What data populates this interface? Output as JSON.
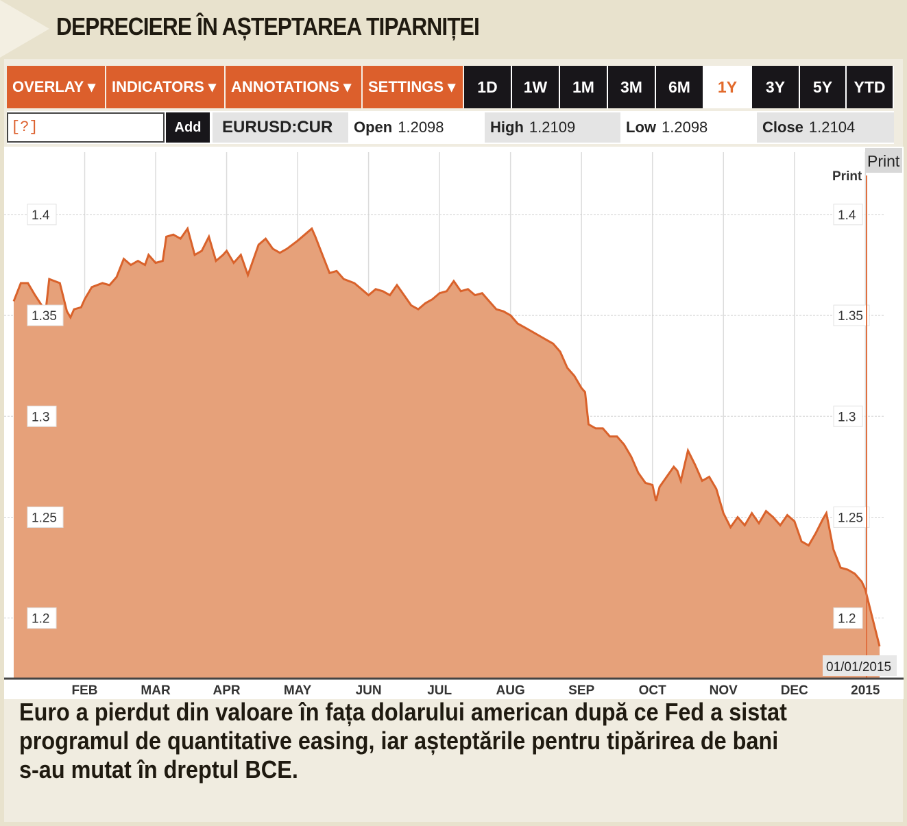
{
  "headline": "DEPRECIERE ÎN AȘTEPTAREA TIPARNIȚEI",
  "toolbar": {
    "menus": [
      "OVERLAY ▾",
      "INDICATORS ▾",
      "ANNOTATIONS ▾",
      "SETTINGS ▾"
    ],
    "ranges": [
      "1D",
      "1W",
      "1M",
      "3M",
      "6M",
      "1Y",
      "3Y",
      "5Y",
      "YTD"
    ],
    "selected_range": "1Y"
  },
  "quote": {
    "input_value": "[?]",
    "add_label": "Add",
    "symbol": "EURUSD:CUR",
    "open_label": "Open",
    "open_value": "1.2098",
    "high_label": "High",
    "high_value": "1.2109",
    "low_label": "Low",
    "low_value": "1.2098",
    "close_label": "Close",
    "close_value": "1.2104"
  },
  "print_label": "Print",
  "print_label_2": "Print",
  "date_badge": "01/01/2015",
  "caption": "Euro a pierdut din valoare în fața dolarului american după ce Fed a sistat programul de quantitative easing, iar așteptările pentru tipărirea de bani s-au mutat în dreptul BCE.",
  "colors": {
    "accent": "#dc5f2c",
    "fill": "#e6a17a",
    "line": "#d9622b"
  },
  "chart_data": {
    "type": "area",
    "title": "",
    "ylim": [
      1.17,
      1.42
    ],
    "y_ticks": [
      "1.4",
      "1.35",
      "1.3",
      "1.25",
      "1.2"
    ],
    "y_tick_values": [
      1.4,
      1.35,
      1.3,
      1.25,
      1.2
    ],
    "x_ticks": [
      "FEB",
      "MAR",
      "APR",
      "MAY",
      "JUN",
      "JUL",
      "AUG",
      "SEP",
      "OCT",
      "NOV",
      "DEC",
      "2015"
    ],
    "x_tick_months": [
      1,
      2,
      3,
      4,
      5,
      6,
      7,
      8,
      9,
      10,
      11,
      12
    ],
    "x_unit": "months since 2014-01-01",
    "series": [
      {
        "name": "EURUSD",
        "points": [
          [
            0.0,
            1.357
          ],
          [
            0.1,
            1.366
          ],
          [
            0.2,
            1.366
          ],
          [
            0.3,
            1.36
          ],
          [
            0.45,
            1.352
          ],
          [
            0.5,
            1.368
          ],
          [
            0.65,
            1.366
          ],
          [
            0.75,
            1.352
          ],
          [
            0.8,
            1.349
          ],
          [
            0.85,
            1.353
          ],
          [
            0.95,
            1.354
          ],
          [
            1.0,
            1.358
          ],
          [
            1.1,
            1.364
          ],
          [
            1.25,
            1.366
          ],
          [
            1.35,
            1.365
          ],
          [
            1.45,
            1.369
          ],
          [
            1.55,
            1.378
          ],
          [
            1.65,
            1.375
          ],
          [
            1.75,
            1.377
          ],
          [
            1.85,
            1.375
          ],
          [
            1.9,
            1.38
          ],
          [
            2.0,
            1.376
          ],
          [
            2.1,
            1.377
          ],
          [
            2.15,
            1.389
          ],
          [
            2.25,
            1.39
          ],
          [
            2.35,
            1.388
          ],
          [
            2.45,
            1.393
          ],
          [
            2.55,
            1.38
          ],
          [
            2.65,
            1.382
          ],
          [
            2.75,
            1.389
          ],
          [
            2.85,
            1.377
          ],
          [
            2.95,
            1.38
          ],
          [
            3.0,
            1.382
          ],
          [
            3.1,
            1.376
          ],
          [
            3.2,
            1.38
          ],
          [
            3.3,
            1.37
          ],
          [
            3.45,
            1.385
          ],
          [
            3.55,
            1.388
          ],
          [
            3.65,
            1.383
          ],
          [
            3.75,
            1.381
          ],
          [
            3.85,
            1.383
          ],
          [
            4.0,
            1.387
          ],
          [
            4.1,
            1.39
          ],
          [
            4.2,
            1.393
          ],
          [
            4.25,
            1.389
          ],
          [
            4.35,
            1.38
          ],
          [
            4.45,
            1.371
          ],
          [
            4.55,
            1.372
          ],
          [
            4.65,
            1.368
          ],
          [
            4.8,
            1.366
          ],
          [
            4.9,
            1.363
          ],
          [
            5.0,
            1.36
          ],
          [
            5.1,
            1.363
          ],
          [
            5.2,
            1.362
          ],
          [
            5.3,
            1.36
          ],
          [
            5.4,
            1.365
          ],
          [
            5.5,
            1.36
          ],
          [
            5.6,
            1.355
          ],
          [
            5.7,
            1.353
          ],
          [
            5.8,
            1.356
          ],
          [
            5.9,
            1.358
          ],
          [
            6.0,
            1.361
          ],
          [
            6.1,
            1.362
          ],
          [
            6.2,
            1.367
          ],
          [
            6.3,
            1.362
          ],
          [
            6.4,
            1.363
          ],
          [
            6.5,
            1.36
          ],
          [
            6.6,
            1.361
          ],
          [
            6.7,
            1.357
          ],
          [
            6.8,
            1.353
          ],
          [
            6.9,
            1.352
          ],
          [
            7.0,
            1.35
          ],
          [
            7.1,
            1.346
          ],
          [
            7.2,
            1.344
          ],
          [
            7.3,
            1.342
          ],
          [
            7.4,
            1.34
          ],
          [
            7.5,
            1.338
          ],
          [
            7.6,
            1.336
          ],
          [
            7.7,
            1.332
          ],
          [
            7.8,
            1.324
          ],
          [
            7.9,
            1.32
          ],
          [
            8.0,
            1.314
          ],
          [
            8.05,
            1.312
          ],
          [
            8.1,
            1.296
          ],
          [
            8.2,
            1.294
          ],
          [
            8.3,
            1.294
          ],
          [
            8.4,
            1.29
          ],
          [
            8.5,
            1.29
          ],
          [
            8.6,
            1.286
          ],
          [
            8.7,
            1.28
          ],
          [
            8.8,
            1.272
          ],
          [
            8.9,
            1.267
          ],
          [
            9.0,
            1.266
          ],
          [
            9.05,
            1.258
          ],
          [
            9.1,
            1.265
          ],
          [
            9.2,
            1.27
          ],
          [
            9.3,
            1.275
          ],
          [
            9.35,
            1.273
          ],
          [
            9.4,
            1.268
          ],
          [
            9.5,
            1.283
          ],
          [
            9.6,
            1.276
          ],
          [
            9.7,
            1.268
          ],
          [
            9.8,
            1.27
          ],
          [
            9.9,
            1.264
          ],
          [
            10.0,
            1.252
          ],
          [
            10.1,
            1.245
          ],
          [
            10.2,
            1.25
          ],
          [
            10.3,
            1.246
          ],
          [
            10.4,
            1.252
          ],
          [
            10.5,
            1.247
          ],
          [
            10.6,
            1.253
          ],
          [
            10.7,
            1.25
          ],
          [
            10.8,
            1.246
          ],
          [
            10.9,
            1.251
          ],
          [
            11.0,
            1.248
          ],
          [
            11.1,
            1.238
          ],
          [
            11.2,
            1.236
          ],
          [
            11.3,
            1.242
          ],
          [
            11.4,
            1.249
          ],
          [
            11.45,
            1.252
          ],
          [
            11.55,
            1.234
          ],
          [
            11.65,
            1.225
          ],
          [
            11.75,
            1.224
          ],
          [
            11.85,
            1.222
          ],
          [
            11.95,
            1.218
          ],
          [
            12.0,
            1.214
          ],
          [
            12.1,
            1.2
          ],
          [
            12.2,
            1.186
          ]
        ]
      }
    ],
    "grid": true,
    "y_axis": "both-sides"
  }
}
